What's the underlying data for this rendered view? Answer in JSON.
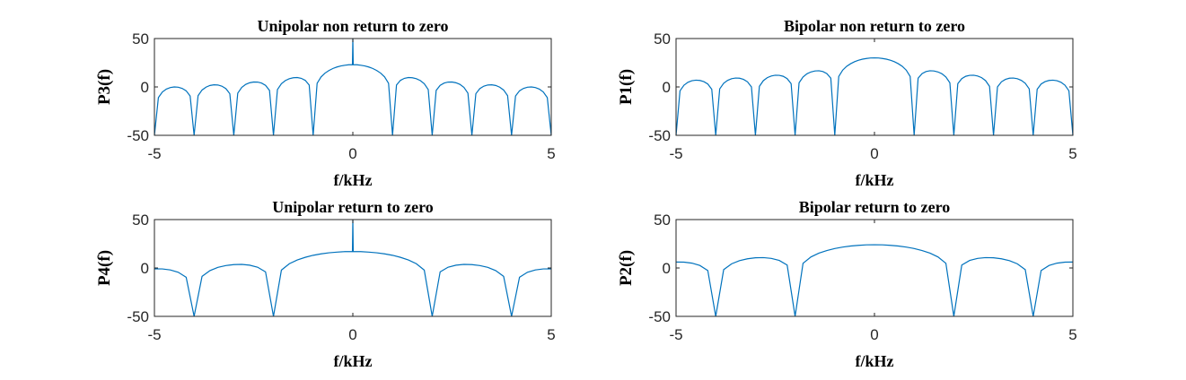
{
  "chart_data": [
    {
      "type": "line",
      "title": "Unipolar non return to zero",
      "xlabel": "f/kHz",
      "ylabel": "P3(f)",
      "color": "#0072bd",
      "xlim": [
        -5,
        5
      ],
      "xticks": [
        -5,
        0,
        5
      ],
      "ylim": [
        -50,
        50
      ],
      "yticks": [
        -50,
        0,
        50
      ],
      "x": [
        -5,
        -4.9,
        -4.8,
        -4.7,
        -4.6,
        -4.5,
        -4.4,
        -4.3,
        -4.2,
        -4.1,
        -4,
        -3.9,
        -3.8,
        -3.7,
        -3.6,
        -3.5,
        -3.4,
        -3.3,
        -3.2,
        -3.1,
        -3,
        -2.9,
        -2.8,
        -2.7,
        -2.6,
        -2.5,
        -2.4,
        -2.3,
        -2.2,
        -2.1,
        -2,
        -1.9,
        -1.8,
        -1.7,
        -1.6,
        -1.5,
        -1.4,
        -1.3,
        -1.2,
        -1.1,
        -1,
        -0.9,
        -0.8,
        -0.7,
        -0.6,
        -0.5,
        -0.4,
        -0.3,
        -0.2,
        -0.1,
        -0.01,
        0,
        0.01,
        0.1,
        0.2,
        0.3,
        0.4,
        0.5,
        0.6,
        0.7,
        0.8,
        0.9,
        1,
        1.1,
        1.2,
        1.3,
        1.4,
        1.5,
        1.6,
        1.7,
        1.8,
        1.9,
        2,
        2.1,
        2.2,
        2.3,
        2.4,
        2.5,
        2.6,
        2.7,
        2.8,
        2.9,
        3,
        3.1,
        3.2,
        3.3,
        3.4,
        3.5,
        3.6,
        3.7,
        3.8,
        3.9,
        4,
        4.1,
        4.2,
        4.3,
        4.4,
        4.5,
        4.6,
        4.7,
        4.8,
        4.9,
        5
      ],
      "values": [
        -50,
        -11,
        -5.2,
        -2.2,
        -0.6,
        0,
        -0.3,
        -1.5,
        -4,
        -9.4,
        -50,
        -9,
        -3.2,
        -0.2,
        1.5,
        2.2,
        2,
        0.8,
        -1.7,
        -7,
        -50,
        -6.4,
        -0.5,
        2.6,
        4.3,
        5.1,
        5,
        4,
        1.6,
        -3.6,
        -50,
        -2.7,
        3.3,
        6.6,
        8.5,
        9.5,
        9.7,
        8.9,
        6.8,
        2,
        -50,
        3.8,
        10.4,
        14.3,
        17,
        19.1,
        20.6,
        21.7,
        22.4,
        22.9,
        23,
        50,
        23,
        22.9,
        22.4,
        21.7,
        20.6,
        19.1,
        17,
        14.3,
        10.4,
        3.8,
        -50,
        2,
        6.8,
        8.9,
        9.7,
        9.5,
        8.5,
        6.6,
        3.3,
        -2.7,
        -50,
        -3.6,
        1.6,
        4,
        5,
        5.1,
        4.3,
        2.6,
        -0.5,
        -6.4,
        -50,
        -7,
        -1.7,
        0.8,
        2,
        2.2,
        1.5,
        -0.2,
        -3.2,
        -9,
        -50,
        -9.4,
        -4,
        -1.5,
        -0.3,
        0,
        -0.6,
        -2.2,
        -5.2,
        -11,
        -50
      ]
    },
    {
      "type": "line",
      "title": "Bipolar non return to zero",
      "xlabel": "f/kHz",
      "ylabel": "P1(f)",
      "color": "#0072bd",
      "xlim": [
        -5,
        5
      ],
      "xticks": [
        -5,
        0,
        5
      ],
      "ylim": [
        -50,
        50
      ],
      "yticks": [
        -50,
        0,
        50
      ],
      "x": [
        -5,
        -4.9,
        -4.8,
        -4.7,
        -4.6,
        -4.5,
        -4.4,
        -4.3,
        -4.2,
        -4.1,
        -4,
        -3.9,
        -3.8,
        -3.7,
        -3.6,
        -3.5,
        -3.4,
        -3.3,
        -3.2,
        -3.1,
        -3,
        -2.9,
        -2.8,
        -2.7,
        -2.6,
        -2.5,
        -2.4,
        -2.3,
        -2.2,
        -2.1,
        -2,
        -1.9,
        -1.8,
        -1.7,
        -1.6,
        -1.5,
        -1.4,
        -1.3,
        -1.2,
        -1.1,
        -1,
        -0.9,
        -0.8,
        -0.7,
        -0.6,
        -0.5,
        -0.4,
        -0.3,
        -0.2,
        -0.1,
        0,
        0.1,
        0.2,
        0.3,
        0.4,
        0.5,
        0.6,
        0.7,
        0.8,
        0.9,
        1,
        1.1,
        1.2,
        1.3,
        1.4,
        1.5,
        1.6,
        1.7,
        1.8,
        1.9,
        2,
        2.1,
        2.2,
        2.3,
        2.4,
        2.5,
        2.6,
        2.7,
        2.8,
        2.9,
        3,
        3.1,
        3.2,
        3.3,
        3.4,
        3.5,
        3.6,
        3.7,
        3.8,
        3.9,
        4,
        4.1,
        4.2,
        4.3,
        4.4,
        4.5,
        4.6,
        4.7,
        4.8,
        4.9,
        5
      ],
      "values": [
        -50,
        -4,
        1.8,
        4.8,
        6.4,
        7,
        6.7,
        5.5,
        3,
        -2.4,
        -50,
        -2,
        3.8,
        6.8,
        8.5,
        9.2,
        9,
        7.8,
        5.3,
        0,
        -50,
        0.6,
        6.5,
        9.6,
        11.3,
        12.1,
        12,
        11,
        8.6,
        3.4,
        -50,
        4.3,
        10.3,
        13.6,
        15.5,
        16.5,
        16.7,
        15.9,
        13.8,
        9,
        -50,
        10.8,
        17.4,
        21.3,
        24,
        26.1,
        27.6,
        28.7,
        29.4,
        29.9,
        30,
        29.9,
        29.4,
        28.7,
        27.6,
        26.1,
        24,
        21.3,
        17.4,
        10.8,
        -50,
        9,
        13.8,
        15.9,
        16.7,
        16.5,
        15.5,
        13.6,
        10.3,
        4.3,
        -50,
        3.4,
        8.6,
        11,
        12,
        12.1,
        11.3,
        9.6,
        6.5,
        0.6,
        -50,
        0,
        5.3,
        7.8,
        9,
        9.2,
        8.5,
        6.8,
        3.8,
        -2,
        -50,
        -2.4,
        3,
        5.5,
        6.7,
        7,
        6.4,
        4.8,
        1.8,
        -4,
        -50
      ]
    },
    {
      "type": "line",
      "title": "Unipolar return to zero",
      "xlabel": "f/kHz",
      "ylabel": "P4(f)",
      "color": "#0072bd",
      "xlim": [
        -5,
        5
      ],
      "xticks": [
        -5,
        0,
        5
      ],
      "ylim": [
        -50,
        50
      ],
      "yticks": [
        -50,
        0,
        50
      ],
      "x": [
        -5,
        -4.8,
        -4.6,
        -4.4,
        -4.2,
        -4,
        -3.8,
        -3.6,
        -3.4,
        -3.2,
        -3,
        -2.8,
        -2.6,
        -2.4,
        -2.2,
        -2,
        -1.8,
        -1.6,
        -1.4,
        -1.2,
        -1,
        -0.8,
        -0.6,
        -0.4,
        -0.2,
        -0.01,
        0,
        0.01,
        0.2,
        0.4,
        0.6,
        0.8,
        1,
        1.2,
        1.4,
        1.6,
        1.8,
        2,
        2.2,
        2.4,
        2.6,
        2.8,
        3,
        3.2,
        3.4,
        3.6,
        3.8,
        4,
        4.2,
        4.4,
        4.6,
        4.8,
        5
      ],
      "values": [
        -0.9,
        -1,
        -2,
        -4.4,
        -9.6,
        -50,
        -8.7,
        -2.7,
        0.6,
        2.5,
        3.5,
        3.7,
        2.9,
        0.8,
        -4,
        -50,
        -2.2,
        4.4,
        8.3,
        11,
        13.1,
        14.6,
        15.7,
        16.4,
        16.9,
        17,
        50,
        17,
        16.9,
        16.4,
        15.7,
        14.6,
        13.1,
        11,
        8.3,
        4.4,
        -2.2,
        -50,
        -4,
        0.8,
        2.9,
        3.7,
        3.5,
        2.5,
        0.6,
        -2.7,
        -8.7,
        -50,
        -9.6,
        -4.4,
        -2,
        -1,
        -0.9
      ]
    },
    {
      "type": "line",
      "title": "Bipolar return to zero",
      "xlabel": "f/kHz",
      "ylabel": "P2(f)",
      "color": "#0072bd",
      "xlim": [
        -5,
        5
      ],
      "xticks": [
        -5,
        0,
        5
      ],
      "ylim": [
        -50,
        50
      ],
      "yticks": [
        -50,
        0,
        50
      ],
      "x": [
        -5,
        -4.8,
        -4.6,
        -4.4,
        -4.2,
        -4,
        -3.8,
        -3.6,
        -3.4,
        -3.2,
        -3,
        -2.8,
        -2.6,
        -2.4,
        -2.2,
        -2,
        -1.8,
        -1.6,
        -1.4,
        -1.2,
        -1,
        -0.8,
        -0.6,
        -0.4,
        -0.2,
        0,
        0.2,
        0.4,
        0.6,
        0.8,
        1,
        1.2,
        1.4,
        1.6,
        1.8,
        2,
        2.2,
        2.4,
        2.6,
        2.8,
        3,
        3.2,
        3.4,
        3.6,
        3.8,
        4,
        4.2,
        4.4,
        4.6,
        4.8,
        5
      ],
      "values": [
        6.1,
        6,
        5,
        2.6,
        -2.6,
        -50,
        -1.7,
        4.3,
        7.6,
        9.5,
        10.5,
        10.7,
        9.9,
        7.8,
        3,
        -50,
        4.8,
        11.4,
        15.3,
        18,
        20.1,
        21.6,
        22.7,
        23.4,
        23.9,
        24,
        23.9,
        23.4,
        22.7,
        21.6,
        20.1,
        18,
        15.3,
        11.4,
        4.8,
        -50,
        3,
        7.8,
        9.9,
        10.7,
        10.5,
        9.5,
        7.6,
        4.3,
        -1.7,
        -50,
        -2.6,
        2.6,
        5,
        6,
        6.1
      ]
    }
  ]
}
